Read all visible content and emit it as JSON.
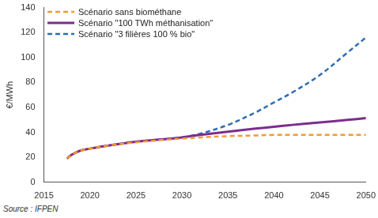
{
  "chart_data": {
    "type": "line",
    "y_label": "€/MWh",
    "source": "Source : IFPEN",
    "x": [
      2017.5,
      2018,
      2019,
      2020,
      2022,
      2025,
      2028,
      2030,
      2032,
      2035,
      2038,
      2040,
      2042,
      2045,
      2048,
      2050
    ],
    "series": [
      {
        "name": "Scénario sans biométhane",
        "color": "#f39a32",
        "line_style": "dashed",
        "values": [
          19,
          22,
          25.5,
          27,
          29.5,
          32,
          34,
          35,
          36,
          37,
          37.5,
          38,
          38,
          38,
          38,
          38
        ]
      },
      {
        "name": "Scénario \"100 TWh méthanisation\"",
        "color": "#7b2d8e",
        "line_style": "solid",
        "values": [
          19,
          22,
          25.5,
          27,
          29.5,
          32.5,
          34.5,
          36,
          38,
          40.5,
          43,
          44.5,
          46,
          48,
          50,
          51.5
        ]
      },
      {
        "name": "Scénario \"3 filières 100 % bio\"",
        "color": "#2e6db4",
        "line_style": "dashed",
        "values": [
          19,
          22,
          25.5,
          27,
          29.5,
          32.5,
          34.5,
          36,
          39,
          46,
          56,
          64,
          72,
          86,
          104,
          116
        ]
      }
    ],
    "xlim": [
      2015,
      2050
    ],
    "xticks": [
      2015,
      2020,
      2025,
      2030,
      2035,
      2040,
      2045,
      2050
    ],
    "ylim": [
      0,
      140
    ],
    "yticks": [
      0,
      20,
      40,
      60,
      80,
      100,
      120,
      140
    ],
    "grid": false,
    "legend": "top-left"
  }
}
